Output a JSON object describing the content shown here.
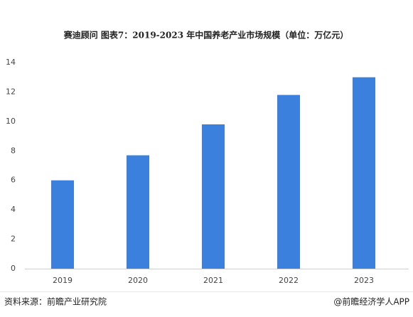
{
  "chart_data": {
    "type": "bar",
    "title": "赛迪顾问  图表7：2019-2023 年中国养老产业市场规模（单位：万亿元）",
    "categories": [
      "2019",
      "2020",
      "2021",
      "2022",
      "2023"
    ],
    "values": [
      6.0,
      7.7,
      9.8,
      11.8,
      13.0
    ],
    "color": "#3a80dc",
    "ylim": [
      0,
      14
    ],
    "yticks": [
      0,
      2,
      4,
      6,
      8,
      10,
      12,
      14
    ],
    "grid": false
  },
  "footer": {
    "source": "资料来源：前瞻产业研究院",
    "credit": "@前瞻经济学人APP"
  }
}
